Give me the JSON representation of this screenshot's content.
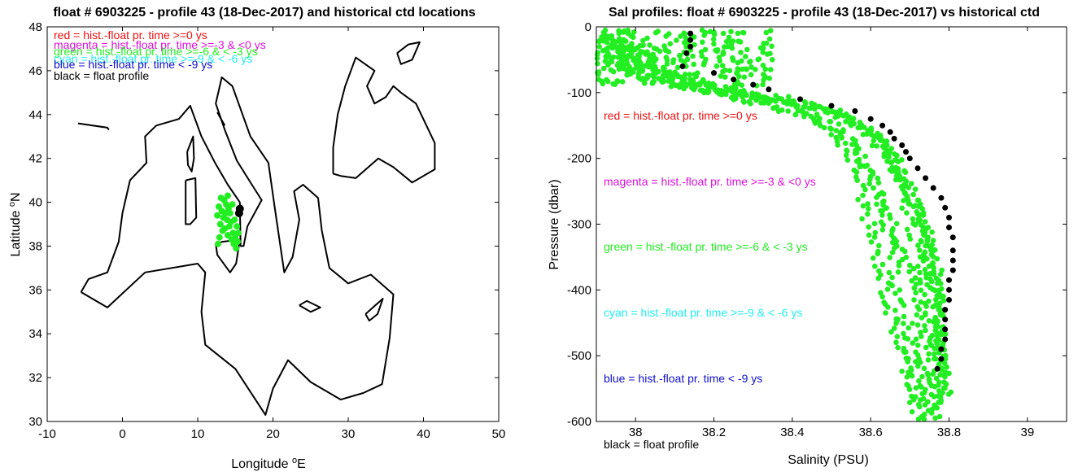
{
  "chart_data": [
    {
      "type": "scatter",
      "title": "float # 6903225 - profile 43 (18-Dec-2017) and historical ctd locations",
      "xlabel": "Longitude",
      "xlabel_sup": "o",
      "xlabel_suffix": "E",
      "ylabel": "Latitude",
      "ylabel_sup": "o",
      "ylabel_suffix": "N",
      "xlim": [
        -10,
        50
      ],
      "ylim": [
        30,
        48
      ],
      "xticks": [
        -10,
        0,
        10,
        20,
        30,
        40,
        50
      ],
      "yticks": [
        30,
        32,
        34,
        36,
        38,
        40,
        42,
        44,
        46,
        48
      ],
      "legend": [
        {
          "text": "red = hist.-float pr. time >=0 ys",
          "color": "#ee1111"
        },
        {
          "text": "magenta = hist.-float pr. time >=-3 & <0 ys",
          "color": "#dd11dd"
        },
        {
          "text": "green = hist.-float pr. time >=-6 & < -3 ys",
          "color": "#22ee22"
        },
        {
          "text": "cyan = hist.-float pr. time >=-9 & < -6 ys",
          "color": "#22eeee"
        },
        {
          "text": "blue = hist.-float pr. time < -9 ys",
          "color": "#1111cc"
        },
        {
          "text": "black = float profile",
          "color": "#000000"
        }
      ],
      "series": [
        {
          "name": "green",
          "color": "#22ee22",
          "points": [
            [
              12.8,
              39.8
            ],
            [
              13.2,
              39.6
            ],
            [
              13.5,
              40.1
            ],
            [
              13.8,
              39.9
            ],
            [
              14.1,
              39.7
            ],
            [
              13.4,
              39.3
            ],
            [
              13.9,
              39.2
            ],
            [
              14.3,
              39.5
            ],
            [
              14.6,
              39.9
            ],
            [
              13.1,
              40.2
            ],
            [
              14.0,
              40.3
            ],
            [
              14.4,
              39.1
            ],
            [
              13.6,
              38.8
            ],
            [
              14.2,
              38.9
            ],
            [
              14.7,
              38.6
            ],
            [
              15.0,
              38.4
            ],
            [
              14.5,
              38.3
            ],
            [
              15.2,
              38.9
            ],
            [
              15.3,
              38.2
            ],
            [
              15.1,
              37.9
            ],
            [
              14.8,
              38.1
            ],
            [
              12.9,
              38.4
            ],
            [
              13.3,
              38.7
            ],
            [
              14.9,
              39.2
            ],
            [
              12.6,
              39.4
            ],
            [
              13.0,
              39.0
            ],
            [
              15.4,
              38.6
            ],
            [
              14.0,
              38.5
            ],
            [
              13.7,
              39.5
            ],
            [
              12.7,
              38.1
            ]
          ]
        },
        {
          "name": "black",
          "color": "#000000",
          "points": [
            [
              15.6,
              39.7
            ],
            [
              15.5,
              39.5
            ]
          ]
        }
      ]
    },
    {
      "type": "scatter",
      "title": "Sal profiles: float # 6903225 - profile 43 (18-Dec-2017) vs historical ctd",
      "xlabel": "Salinity (PSU)",
      "ylabel": "Pressure (dbar)",
      "xlim": [
        37.9,
        39.1
      ],
      "ylim": [
        -600,
        0
      ],
      "xticks": [
        38,
        38.2,
        38.4,
        38.6,
        38.8,
        39
      ],
      "xtick_labels": [
        "38",
        "38.2",
        "38.4",
        "38.6",
        "38.8",
        "39"
      ],
      "yticks": [
        0,
        -100,
        -200,
        -300,
        -400,
        -500,
        -600
      ],
      "legend": [
        {
          "text": "red = hist.-float pr. time >=0 ys",
          "color": "#ee1111"
        },
        {
          "text": "magenta = hist.-float pr. time >=-3 & <0 ys",
          "color": "#dd11dd"
        },
        {
          "text": "green = hist.-float pr. time >=-6 & < -3 ys",
          "color": "#22ee22"
        },
        {
          "text": "cyan = hist.-float pr. time >=-9 & < -6 ys",
          "color": "#22eeee"
        },
        {
          "text": "blue = hist.-float pr. time < -9 ys",
          "color": "#1111cc"
        },
        {
          "text": "black = float profile",
          "color": "#000000"
        }
      ],
      "series": [
        {
          "name": "green",
          "color": "#22ee22",
          "profiles": [
            [
              [
                37.92,
                -10
              ],
              [
                37.96,
                -40
              ],
              [
                38.02,
                -70
              ],
              [
                38.12,
                -90
              ],
              [
                38.28,
                -105
              ],
              [
                38.42,
                -125
              ],
              [
                38.52,
                -150
              ],
              [
                38.58,
                -200
              ],
              [
                38.62,
                -250
              ],
              [
                38.66,
                -300
              ],
              [
                38.69,
                -350
              ],
              [
                38.71,
                -400
              ],
              [
                38.72,
                -450
              ],
              [
                38.73,
                -500
              ],
              [
                38.74,
                -550
              ],
              [
                38.74,
                -600
              ]
            ],
            [
              [
                37.95,
                -15
              ],
              [
                38.0,
                -45
              ],
              [
                38.08,
                -75
              ],
              [
                38.2,
                -95
              ],
              [
                38.36,
                -110
              ],
              [
                38.5,
                -130
              ],
              [
                38.6,
                -160
              ],
              [
                38.66,
                -200
              ],
              [
                38.7,
                -250
              ],
              [
                38.73,
                -300
              ],
              [
                38.75,
                -350
              ],
              [
                38.76,
                -400
              ],
              [
                38.77,
                -450
              ],
              [
                38.77,
                -500
              ],
              [
                38.77,
                -550
              ],
              [
                38.77,
                -600
              ]
            ],
            [
              [
                37.93,
                -20
              ],
              [
                37.99,
                -50
              ],
              [
                38.1,
                -80
              ],
              [
                38.25,
                -98
              ],
              [
                38.4,
                -115
              ],
              [
                38.55,
                -140
              ],
              [
                38.64,
                -180
              ],
              [
                38.69,
                -230
              ],
              [
                38.73,
                -280
              ],
              [
                38.76,
                -330
              ],
              [
                38.77,
                -380
              ],
              [
                38.78,
                -430
              ],
              [
                38.78,
                -480
              ],
              [
                38.78,
                -530
              ],
              [
                38.78,
                -580
              ]
            ],
            [
              [
                37.9,
                -25
              ],
              [
                37.94,
                -55
              ],
              [
                38.04,
                -82
              ],
              [
                38.18,
                -100
              ],
              [
                38.32,
                -118
              ],
              [
                38.46,
                -140
              ],
              [
                38.55,
                -175
              ],
              [
                38.6,
                -220
              ],
              [
                38.63,
                -270
              ],
              [
                38.65,
                -320
              ],
              [
                38.66,
                -370
              ],
              [
                38.67,
                -420
              ],
              [
                38.69,
                -470
              ],
              [
                38.71,
                -520
              ],
              [
                38.72,
                -570
              ]
            ],
            [
              [
                37.97,
                -12
              ],
              [
                38.05,
                -60
              ],
              [
                38.15,
                -88
              ],
              [
                38.3,
                -102
              ],
              [
                38.45,
                -120
              ],
              [
                38.57,
                -145
              ],
              [
                38.63,
                -190
              ],
              [
                38.67,
                -240
              ],
              [
                38.7,
                -290
              ],
              [
                38.72,
                -340
              ],
              [
                38.74,
                -390
              ],
              [
                38.75,
                -440
              ],
              [
                38.76,
                -490
              ],
              [
                38.76,
                -540
              ],
              [
                38.76,
                -600
              ]
            ],
            [
              [
                37.98,
                -18
              ],
              [
                38.06,
                -65
              ],
              [
                38.22,
                -92
              ],
              [
                38.38,
                -108
              ],
              [
                38.53,
                -128
              ],
              [
                38.62,
                -165
              ],
              [
                38.67,
                -215
              ],
              [
                38.71,
                -265
              ],
              [
                38.74,
                -315
              ],
              [
                38.76,
                -365
              ],
              [
                38.77,
                -415
              ],
              [
                38.78,
                -465
              ],
              [
                38.79,
                -515
              ],
              [
                38.79,
                -565
              ]
            ],
            [
              [
                37.91,
                -30
              ],
              [
                37.97,
                -62
              ],
              [
                38.07,
                -84
              ],
              [
                38.16,
                -96
              ],
              [
                38.3,
                -112
              ],
              [
                38.44,
                -135
              ],
              [
                38.52,
                -170
              ],
              [
                38.56,
                -210
              ],
              [
                38.58,
                -260
              ],
              [
                38.6,
                -310
              ],
              [
                38.62,
                -360
              ],
              [
                38.64,
                -410
              ],
              [
                38.66,
                -460
              ],
              [
                38.69,
                -510
              ],
              [
                38.71,
                -560
              ],
              [
                38.72,
                -600
              ]
            ]
          ]
        },
        {
          "name": "black",
          "color": "#000000",
          "points": [
            [
              38.14,
              -10
            ],
            [
              38.14,
              -20
            ],
            [
              38.14,
              -30
            ],
            [
              38.13,
              -40
            ],
            [
              38.12,
              -60
            ],
            [
              38.2,
              -70
            ],
            [
              38.25,
              -80
            ],
            [
              38.3,
              -88
            ],
            [
              38.34,
              -95
            ],
            [
              38.42,
              -110
            ],
            [
              38.5,
              -120
            ],
            [
              38.56,
              -128
            ],
            [
              38.6,
              -140
            ],
            [
              38.63,
              -150
            ],
            [
              38.65,
              -160
            ],
            [
              38.66,
              -170
            ],
            [
              38.68,
              -180
            ],
            [
              38.69,
              -190
            ],
            [
              38.7,
              -200
            ],
            [
              38.72,
              -215
            ],
            [
              38.74,
              -230
            ],
            [
              38.76,
              -245
            ],
            [
              38.78,
              -260
            ],
            [
              38.79,
              -275
            ],
            [
              38.8,
              -290
            ],
            [
              38.8,
              -305
            ],
            [
              38.81,
              -320
            ],
            [
              38.81,
              -340
            ],
            [
              38.81,
              -355
            ],
            [
              38.81,
              -370
            ],
            [
              38.8,
              -385
            ],
            [
              38.8,
              -400
            ],
            [
              38.8,
              -415
            ],
            [
              38.79,
              -430
            ],
            [
              38.79,
              -445
            ],
            [
              38.79,
              -460
            ],
            [
              38.79,
              -475
            ],
            [
              38.78,
              -490
            ],
            [
              38.78,
              -505
            ],
            [
              38.77,
              -520
            ]
          ]
        }
      ]
    }
  ],
  "map_outline_color": "#000000"
}
